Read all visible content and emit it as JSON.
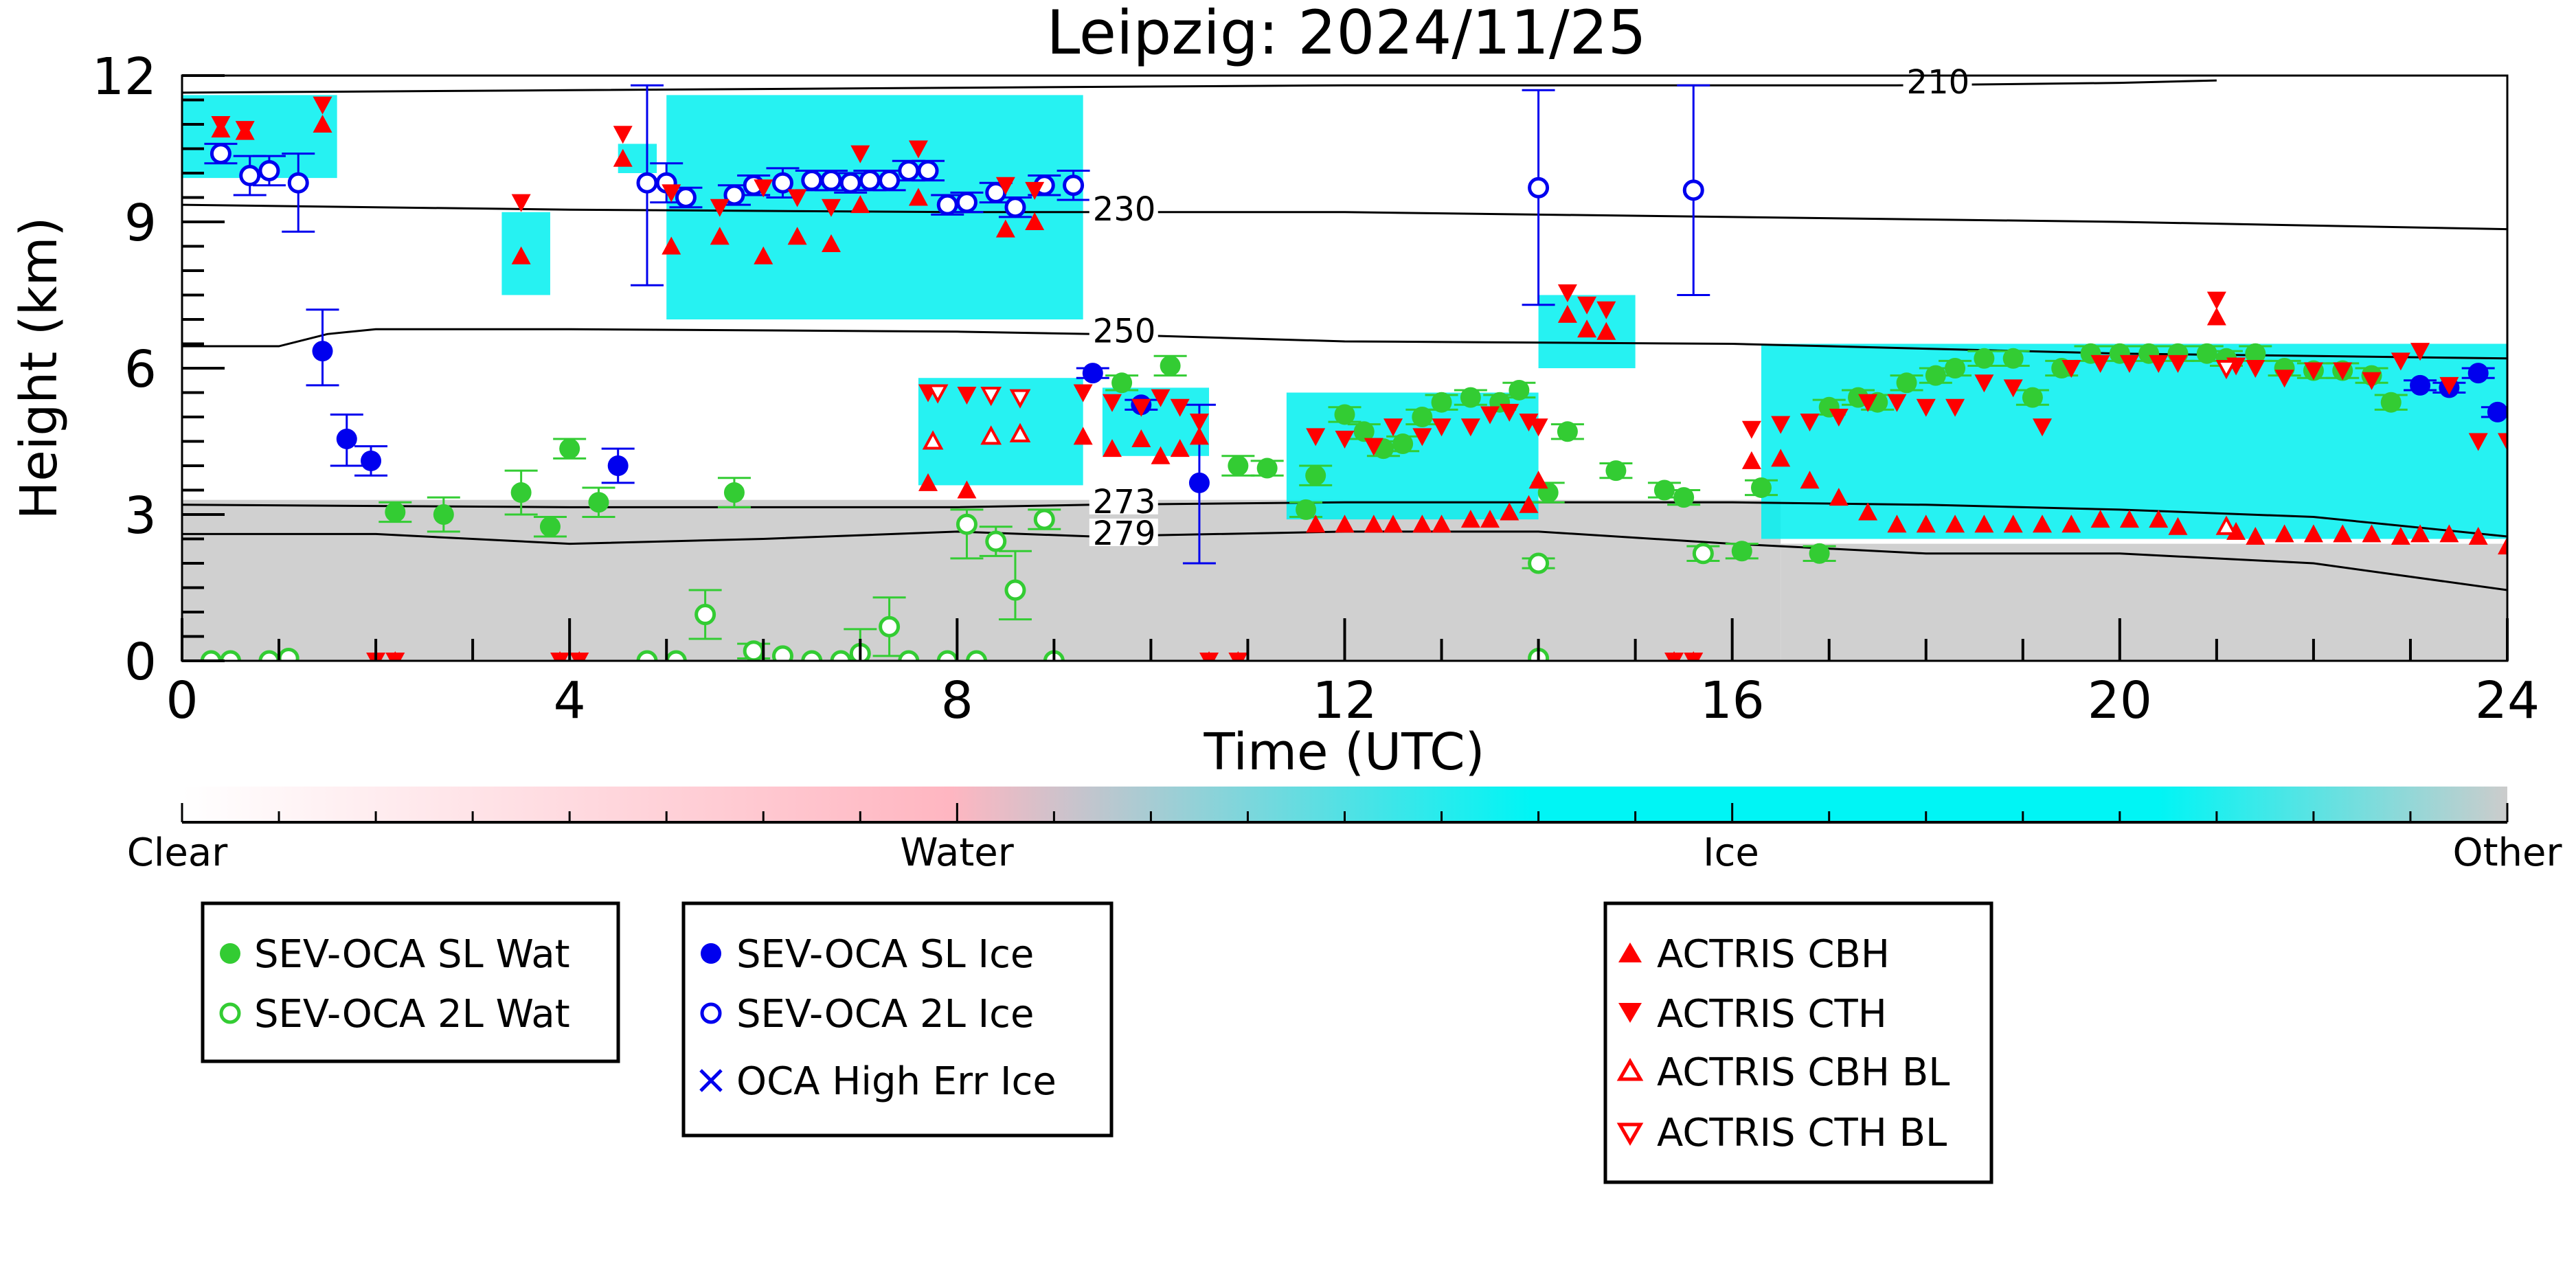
{
  "chart_data": {
    "type": "scatter",
    "title": "Leipzig: 2024/11/25",
    "xlabel": "Time (UTC)",
    "ylabel": "Height (km)",
    "xlim": [
      0,
      24
    ],
    "ylim": [
      0,
      12
    ],
    "x_ticks": [
      0,
      4,
      8,
      12,
      16,
      20,
      24
    ],
    "y_ticks": [
      0,
      3,
      6,
      9,
      12
    ],
    "grid": false,
    "colorbar": {
      "labels": [
        "Clear",
        "Water",
        "Ice",
        "Other"
      ],
      "colors": [
        "#ffffff",
        "#ffb6c1",
        "#00f5f5",
        "#cccccc"
      ]
    },
    "colors": {
      "sev_water": "#33cc33",
      "sev_ice": "#0000ee",
      "actris": "#ff0000",
      "ice_cloud": "#00f0f0",
      "water_cloud": "#ffb6c1",
      "other": "#d0d0d0"
    },
    "isotherms": [
      {
        "label": "210",
        "x": [
          0,
          4,
          8,
          12,
          16,
          17.7,
          20,
          21
        ],
        "y": [
          11.65,
          11.7,
          11.75,
          11.8,
          11.8,
          11.8,
          11.85,
          11.9
        ]
      },
      {
        "label": "230",
        "x": [
          0,
          4,
          8,
          9.4,
          12,
          16,
          20,
          24
        ],
        "y": [
          9.35,
          9.25,
          9.2,
          9.2,
          9.2,
          9.1,
          9.0,
          8.85
        ]
      },
      {
        "label": "250",
        "x": [
          0,
          1,
          1.5,
          2,
          4,
          8,
          9.4,
          12,
          16,
          20,
          24
        ],
        "y": [
          6.45,
          6.45,
          6.7,
          6.8,
          6.8,
          6.75,
          6.7,
          6.55,
          6.5,
          6.3,
          6.2
        ]
      },
      {
        "label": "273",
        "x": [
          0,
          4,
          8,
          9.4,
          12,
          16,
          18,
          20,
          22,
          24
        ],
        "y": [
          3.2,
          3.15,
          3.15,
          3.2,
          3.25,
          3.25,
          3.2,
          3.1,
          2.95,
          2.55
        ]
      },
      {
        "label": "279",
        "x": [
          0,
          2,
          4,
          6,
          8,
          9.4,
          12,
          14,
          16,
          18,
          20,
          22,
          24
        ],
        "y": [
          2.6,
          2.6,
          2.4,
          2.5,
          2.65,
          2.55,
          2.65,
          2.65,
          2.4,
          2.2,
          2.2,
          2.0,
          1.45
        ]
      }
    ],
    "ice_clouds": [
      {
        "x": [
          0,
          1.6
        ],
        "y": [
          9.9,
          11.6
        ]
      },
      {
        "x": [
          3.3,
          3.8
        ],
        "y": [
          7.5,
          9.2
        ]
      },
      {
        "x": [
          4.5,
          4.9
        ],
        "y": [
          10.0,
          10.6
        ]
      },
      {
        "x": [
          5.0,
          9.3
        ],
        "y": [
          7.0,
          11.6
        ]
      },
      {
        "x": [
          7.6,
          9.3
        ],
        "y": [
          3.6,
          5.8
        ]
      },
      {
        "x": [
          9.5,
          10.6
        ],
        "y": [
          4.2,
          5.6
        ]
      },
      {
        "x": [
          11.4,
          14.0
        ],
        "y": [
          2.9,
          5.5
        ]
      },
      {
        "x": [
          14.0,
          15.0
        ],
        "y": [
          6.0,
          7.5
        ]
      },
      {
        "x": [
          16.3,
          24.0
        ],
        "y": [
          2.5,
          6.5
        ]
      }
    ],
    "other_regions": [
      {
        "x": [
          0,
          16.5
        ],
        "y": [
          0,
          3.3
        ]
      },
      {
        "x": [
          16.5,
          24
        ],
        "y": [
          0,
          2.4
        ]
      }
    ],
    "series": [
      {
        "name": "SEV-OCA SL Wat",
        "marker": "filled-circle",
        "color": "#33cc33",
        "x": [
          2.2,
          2.7,
          3.5,
          3.8,
          4.0,
          4.3,
          5.7,
          9.7,
          10.2,
          10.9,
          11.2,
          11.6,
          11.7,
          12.0,
          12.2,
          12.4,
          12.6,
          12.8,
          13.0,
          13.3,
          13.6,
          13.8,
          14.1,
          14.3,
          14.8,
          15.3,
          15.5,
          16.1,
          16.3,
          16.9,
          17.0,
          17.3,
          17.5,
          17.8,
          18.1,
          18.3,
          18.6,
          18.9,
          19.1,
          19.4,
          19.7,
          20.0,
          20.3,
          20.6,
          20.9,
          21.1,
          21.4,
          21.7,
          22.0,
          22.3,
          22.6,
          22.8
        ],
        "y": [
          3.05,
          3.0,
          3.45,
          2.75,
          4.35,
          3.25,
          3.45,
          5.7,
          6.05,
          4.0,
          3.95,
          3.1,
          3.8,
          5.05,
          4.7,
          4.35,
          4.45,
          5.0,
          5.3,
          5.4,
          5.3,
          5.55,
          3.45,
          4.7,
          3.9,
          3.5,
          3.35,
          2.25,
          3.55,
          2.2,
          5.2,
          5.4,
          5.3,
          5.7,
          5.85,
          6.0,
          6.2,
          6.2,
          5.4,
          6.0,
          6.3,
          6.3,
          6.3,
          6.3,
          6.3,
          6.2,
          6.3,
          6.0,
          5.95,
          5.95,
          5.85,
          5.3
        ],
        "err_lo": [
          0.2,
          0.35,
          0.45,
          0.2,
          0.2,
          0.3,
          0.3,
          0.15,
          0.2,
          0.2,
          0.15,
          0.15,
          0.2,
          0.15,
          0.15,
          0.15,
          0.15,
          0.15,
          0.15,
          0.15,
          0.15,
          0.15,
          0.2,
          0.15,
          0.15,
          0.15,
          0.15,
          0.15,
          0.15,
          0.15,
          0.15,
          0.15,
          0.15,
          0.15,
          0.15,
          0.15,
          0.15,
          0.15,
          0.15,
          0.15,
          0.15,
          0.15,
          0.15,
          0.15,
          0.15,
          0.15,
          0.15,
          0.15,
          0.15,
          0.15,
          0.15,
          0.15
        ],
        "err_hi": [
          0.2,
          0.35,
          0.45,
          0.2,
          0.2,
          0.3,
          0.3,
          0.15,
          0.2,
          0.2,
          0.15,
          0.15,
          0.2,
          0.15,
          0.15,
          0.15,
          0.15,
          0.15,
          0.15,
          0.15,
          0.15,
          0.15,
          0.2,
          0.15,
          0.15,
          0.15,
          0.15,
          0.15,
          0.15,
          0.15,
          0.15,
          0.15,
          0.15,
          0.15,
          0.15,
          0.15,
          0.15,
          0.15,
          0.15,
          0.15,
          0.15,
          0.15,
          0.15,
          0.15,
          0.15,
          0.15,
          0.15,
          0.15,
          0.15,
          0.15,
          0.15,
          0.15
        ]
      },
      {
        "name": "SEV-OCA 2L Wat",
        "marker": "open-circle",
        "color": "#33cc33",
        "x": [
          0.3,
          0.5,
          0.9,
          1.1,
          4.8,
          5.1,
          5.4,
          5.9,
          6.2,
          6.5,
          6.8,
          7.0,
          7.3,
          7.5,
          7.9,
          8.2,
          8.1,
          8.4,
          8.6,
          8.9,
          9.0,
          14.0,
          14.0,
          15.7
        ],
        "y": [
          0.0,
          0.0,
          0.0,
          0.05,
          0.0,
          0.0,
          0.95,
          0.2,
          0.1,
          0.0,
          0.0,
          0.15,
          0.7,
          0.0,
          0.0,
          0.0,
          2.8,
          2.45,
          1.45,
          2.9,
          0.0,
          2.0,
          0.05,
          2.2
        ],
        "err_lo": [
          0,
          0,
          0,
          0,
          0,
          0,
          0.5,
          0.15,
          0,
          0,
          0,
          0.5,
          0.6,
          0,
          0,
          0,
          0.7,
          0.3,
          0.6,
          0.2,
          0,
          0.1,
          0,
          0.15
        ],
        "err_hi": [
          0,
          0,
          0,
          0,
          0,
          0,
          0.5,
          0.15,
          0,
          0,
          0,
          0.5,
          0.6,
          0,
          0,
          0,
          0.3,
          0.3,
          0.8,
          0.2,
          0,
          0.1,
          0,
          0.15
        ]
      },
      {
        "name": "SEV-OCA SL Ice",
        "marker": "filled-circle",
        "color": "#0000ee",
        "x": [
          1.45,
          1.7,
          1.95,
          4.5,
          9.4,
          9.9,
          10.5,
          23.1,
          23.4,
          23.7,
          23.9
        ],
        "y": [
          6.35,
          4.55,
          4.1,
          4.0,
          5.9,
          5.25,
          3.65,
          5.65,
          5.6,
          5.9,
          5.1
        ],
        "err_lo": [
          0.7,
          0.55,
          0.3,
          0.35,
          0.1,
          0.1,
          1.65,
          0.1,
          0.1,
          0.1,
          0.1
        ],
        "err_hi": [
          0.85,
          0.5,
          0.3,
          0.35,
          0.1,
          0.1,
          1.6,
          0.1,
          0.1,
          0.1,
          0.1
        ]
      },
      {
        "name": "SEV-OCA 2L Ice",
        "marker": "open-circle",
        "color": "#0000ee",
        "x": [
          0.4,
          0.7,
          0.9,
          1.2,
          4.8,
          5.0,
          5.2,
          5.7,
          5.9,
          6.2,
          6.5,
          6.7,
          6.9,
          7.1,
          7.3,
          7.5,
          7.7,
          7.9,
          8.1,
          8.4,
          8.6,
          8.9,
          9.2,
          14.0,
          15.6
        ],
        "y": [
          10.4,
          9.95,
          10.05,
          9.8,
          9.8,
          9.8,
          9.5,
          9.55,
          9.75,
          9.8,
          9.85,
          9.85,
          9.8,
          9.85,
          9.85,
          10.05,
          10.05,
          9.35,
          9.4,
          9.6,
          9.3,
          9.75,
          9.75,
          9.7,
          9.65
        ],
        "err_lo": [
          0.2,
          0.4,
          0.3,
          1.0,
          2.1,
          0.4,
          0.2,
          0.2,
          0.2,
          0.3,
          0.2,
          0.2,
          0.2,
          0.2,
          0.2,
          0.2,
          0.2,
          0.2,
          0.2,
          0.2,
          0.2,
          0.2,
          0.3,
          2.4,
          2.15
        ],
        "err_hi": [
          0.2,
          0.4,
          0.3,
          0.6,
          2.0,
          0.4,
          0.2,
          0.2,
          0.2,
          0.3,
          0.2,
          0.2,
          0.2,
          0.2,
          0.2,
          0.2,
          0.2,
          0.2,
          0.2,
          0.2,
          0.2,
          0.2,
          0.3,
          2.0,
          2.15
        ]
      },
      {
        "name": "OCA High Err Ice",
        "marker": "x",
        "color": "#0000ee",
        "x": [],
        "y": []
      },
      {
        "name": "ACTRIS CBH",
        "marker": "triangle-up",
        "color": "#ff0000",
        "x": [
          0.4,
          0.65,
          1.45,
          3.5,
          4.55,
          5.05,
          5.55,
          6.0,
          6.35,
          6.7,
          7.0,
          7.6,
          7.7,
          8.1,
          8.5,
          8.8,
          9.3,
          9.6,
          9.9,
          10.1,
          10.3,
          10.5,
          11.7,
          12.0,
          12.3,
          12.5,
          12.8,
          13.0,
          13.3,
          13.5,
          13.7,
          13.9,
          14.0,
          14.3,
          14.5,
          14.7,
          16.2,
          16.5,
          16.8,
          17.1,
          17.4,
          17.7,
          18.0,
          18.3,
          18.6,
          18.9,
          19.2,
          19.5,
          19.8,
          20.1,
          20.4,
          20.6,
          21.0,
          21.2,
          21.4,
          21.7,
          22.0,
          22.3,
          22.6,
          22.9,
          23.1,
          23.4,
          23.7,
          24.0,
          2.0,
          2.2,
          3.9,
          4.1,
          10.6,
          10.9,
          15.4,
          15.6
        ],
        "y": [
          10.9,
          10.85,
          11.0,
          8.3,
          10.3,
          8.5,
          8.7,
          8.3,
          8.7,
          8.55,
          9.35,
          9.5,
          3.65,
          3.5,
          8.85,
          9.0,
          4.6,
          4.35,
          4.55,
          4.2,
          4.35,
          4.6,
          2.8,
          2.8,
          2.8,
          2.8,
          2.8,
          2.8,
          2.9,
          2.9,
          3.05,
          3.2,
          3.7,
          7.1,
          6.8,
          6.75,
          4.1,
          4.15,
          3.7,
          3.35,
          3.05,
          2.8,
          2.8,
          2.8,
          2.8,
          2.8,
          2.8,
          2.8,
          2.9,
          2.9,
          2.9,
          2.75,
          7.05,
          2.65,
          2.55,
          2.6,
          2.6,
          2.6,
          2.6,
          2.55,
          2.6,
          2.6,
          2.55,
          2.35,
          0.0,
          0.0,
          0.0,
          0.0,
          0.0,
          0.0,
          0.0,
          0.0
        ]
      },
      {
        "name": "ACTRIS CTH",
        "marker": "triangle-down",
        "color": "#ff0000",
        "x": [
          0.4,
          0.65,
          1.45,
          3.5,
          4.55,
          5.05,
          5.55,
          6.0,
          6.35,
          6.7,
          7.0,
          7.6,
          7.7,
          8.1,
          8.5,
          8.8,
          9.3,
          9.6,
          9.9,
          10.1,
          10.3,
          10.5,
          11.7,
          12.0,
          12.3,
          12.5,
          12.8,
          13.0,
          13.3,
          13.5,
          13.7,
          13.9,
          14.0,
          14.3,
          14.5,
          14.7,
          16.2,
          16.5,
          16.8,
          17.1,
          17.4,
          17.7,
          18.0,
          18.3,
          18.6,
          18.9,
          19.2,
          19.5,
          19.8,
          20.1,
          20.4,
          20.6,
          21.0,
          21.2,
          21.4,
          21.7,
          22.0,
          22.3,
          22.6,
          22.9,
          23.1,
          23.4,
          23.7,
          24.0,
          2.0,
          2.2,
          3.9,
          4.1,
          10.6,
          10.9,
          15.4,
          15.6
        ],
        "y": [
          11.0,
          10.9,
          11.4,
          9.4,
          10.8,
          9.6,
          9.3,
          9.7,
          9.5,
          9.3,
          10.4,
          10.5,
          5.5,
          5.45,
          9.75,
          9.65,
          5.5,
          5.3,
          5.2,
          5.4,
          5.2,
          4.9,
          4.6,
          4.55,
          4.4,
          4.8,
          4.6,
          4.8,
          4.8,
          5.05,
          5.1,
          4.9,
          4.8,
          7.55,
          7.3,
          7.2,
          4.75,
          4.85,
          4.9,
          5.0,
          5.3,
          5.3,
          5.2,
          5.2,
          5.7,
          5.6,
          4.8,
          6.0,
          6.1,
          6.1,
          6.1,
          6.1,
          7.4,
          6.05,
          6.0,
          5.8,
          5.95,
          5.95,
          5.75,
          6.15,
          6.35,
          5.65,
          4.5,
          4.5,
          0.0,
          0.0,
          0.0,
          0.0,
          0.0,
          0.0,
          0.0,
          0.0
        ]
      },
      {
        "name": "ACTRIS CBH BL",
        "marker": "open-triangle-up",
        "color": "#ff0000",
        "x": [
          7.75,
          8.35,
          8.65,
          21.1
        ],
        "y": [
          4.5,
          4.6,
          4.65,
          2.75
        ]
      },
      {
        "name": "ACTRIS CTH BL",
        "marker": "open-triangle-down",
        "color": "#ff0000",
        "x": [
          7.8,
          8.35,
          8.65,
          21.1
        ],
        "y": [
          5.5,
          5.45,
          5.4,
          6.0
        ]
      }
    ]
  },
  "legend": {
    "box1": [
      "SEV-OCA SL Wat",
      "SEV-OCA 2L Wat"
    ],
    "box2": [
      "SEV-OCA SL Ice",
      "SEV-OCA 2L Ice",
      "OCA High Err Ice"
    ],
    "box3": [
      "ACTRIS CBH",
      "ACTRIS CTH",
      "ACTRIS CBH BL",
      "ACTRIS CTH BL"
    ]
  }
}
